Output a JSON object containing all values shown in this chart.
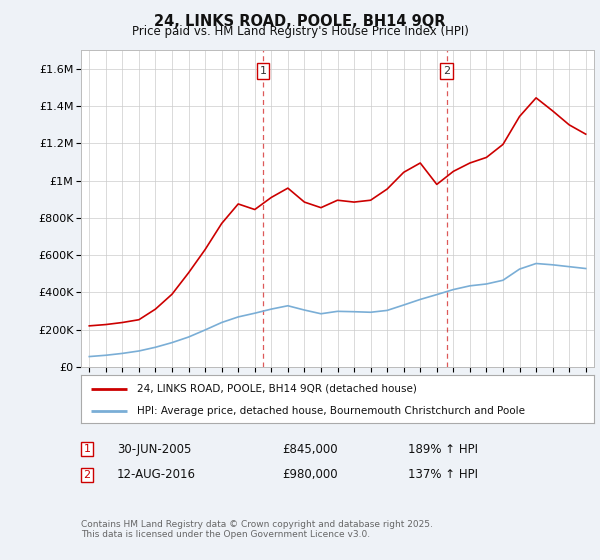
{
  "title": "24, LINKS ROAD, POOLE, BH14 9QR",
  "subtitle": "Price paid vs. HM Land Registry's House Price Index (HPI)",
  "ylim": [
    0,
    1700000
  ],
  "yticks": [
    0,
    200000,
    400000,
    600000,
    800000,
    1000000,
    1200000,
    1400000,
    1600000
  ],
  "ytick_labels": [
    "£0",
    "£200K",
    "£400K",
    "£600K",
    "£800K",
    "£1M",
    "£1.2M",
    "£1.4M",
    "£1.6M"
  ],
  "background_color": "#eef2f7",
  "plot_bg_color": "#ffffff",
  "grid_color": "#cccccc",
  "red_line_color": "#cc0000",
  "blue_line_color": "#7aaed6",
  "marker1_x": 2005.5,
  "marker2_x": 2016.6,
  "annotation1": {
    "label": "1",
    "date": "30-JUN-2005",
    "price": "£845,000",
    "pct": "189% ↑ HPI"
  },
  "annotation2": {
    "label": "2",
    "date": "12-AUG-2016",
    "price": "£980,000",
    "pct": "137% ↑ HPI"
  },
  "legend_label1": "24, LINKS ROAD, POOLE, BH14 9QR (detached house)",
  "legend_label2": "HPI: Average price, detached house, Bournemouth Christchurch and Poole",
  "footnote": "Contains HM Land Registry data © Crown copyright and database right 2025.\nThis data is licensed under the Open Government Licence v3.0.",
  "years": [
    1995,
    1996,
    1997,
    1998,
    1999,
    2000,
    2001,
    2002,
    2003,
    2004,
    2005,
    2006,
    2007,
    2008,
    2009,
    2010,
    2011,
    2012,
    2013,
    2014,
    2015,
    2016,
    2017,
    2018,
    2019,
    2020,
    2021,
    2022,
    2023,
    2024,
    2025
  ],
  "red_values": [
    220000,
    227000,
    238000,
    253000,
    310000,
    390000,
    505000,
    630000,
    770000,
    875000,
    845000,
    910000,
    960000,
    885000,
    855000,
    895000,
    885000,
    895000,
    955000,
    1045000,
    1095000,
    980000,
    1050000,
    1095000,
    1125000,
    1195000,
    1345000,
    1445000,
    1375000,
    1300000,
    1250000
  ],
  "blue_values": [
    55000,
    62000,
    72000,
    85000,
    105000,
    130000,
    160000,
    198000,
    238000,
    268000,
    288000,
    310000,
    328000,
    305000,
    285000,
    298000,
    296000,
    293000,
    303000,
    332000,
    362000,
    388000,
    415000,
    435000,
    445000,
    465000,
    525000,
    555000,
    548000,
    538000,
    528000
  ]
}
